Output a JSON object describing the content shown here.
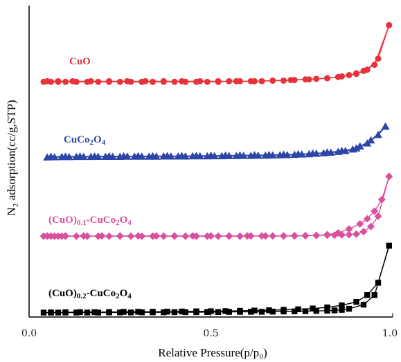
{
  "chart_data": {
    "type": "line",
    "title": "",
    "xlabel": "Relative Pressure(p/p₀)",
    "ylabel": "N₂ adsorption(cc/g,STP)",
    "xlim": [
      0,
      1
    ],
    "x_ticks": [
      "0.0",
      "0.5",
      "1.0"
    ],
    "y_ticks": "none",
    "grid": false,
    "legend": "inline labels",
    "series": [
      {
        "name": "CuO",
        "label_parts": [
          {
            "t": "CuO",
            "sub": false
          }
        ],
        "color": "#e8323a",
        "marker": "circle",
        "adsorption": {
          "x": [
            0.04,
            0.06,
            0.08,
            0.1,
            0.13,
            0.16,
            0.19,
            0.22,
            0.25,
            0.28,
            0.31,
            0.34,
            0.37,
            0.4,
            0.43,
            0.46,
            0.49,
            0.52,
            0.55,
            0.58,
            0.61,
            0.64,
            0.67,
            0.7,
            0.73,
            0.76,
            0.79,
            0.82,
            0.85,
            0.88,
            0.9,
            0.92,
            0.95,
            0.99
          ],
          "y": [
            0.02,
            0.02,
            0.02,
            0.02,
            0.02,
            0.02,
            0.02,
            0.02,
            0.02,
            0.02,
            0.02,
            0.02,
            0.02,
            0.02,
            0.02,
            0.02,
            0.02,
            0.02,
            0.03,
            0.03,
            0.03,
            0.03,
            0.04,
            0.04,
            0.05,
            0.06,
            0.07,
            0.08,
            0.1,
            0.13,
            0.16,
            0.2,
            0.3,
            0.95
          ]
        },
        "desorption": {
          "x": [
            0.99,
            0.96,
            0.93,
            0.9,
            0.86,
            0.82,
            0.77,
            0.72,
            0.67,
            0.62,
            0.57,
            0.52,
            0.47,
            0.42,
            0.37,
            0.32,
            0.27,
            0.22,
            0.17,
            0.12,
            0.08,
            0.05
          ],
          "y": [
            0.95,
            0.4,
            0.22,
            0.15,
            0.11,
            0.08,
            0.06,
            0.05,
            0.04,
            0.03,
            0.03,
            0.03,
            0.03,
            0.03,
            0.03,
            0.03,
            0.03,
            0.03,
            0.03,
            0.03,
            0.03,
            0.03
          ]
        }
      },
      {
        "name": "CuCo2O4",
        "label_parts": [
          {
            "t": "CuCo",
            "sub": false
          },
          {
            "t": "2",
            "sub": true
          },
          {
            "t": "O",
            "sub": false
          },
          {
            "t": "4",
            "sub": true
          }
        ],
        "color": "#2e45a8",
        "marker": "triangle",
        "adsorption": {
          "x": [
            0.05,
            0.07,
            0.09,
            0.11,
            0.13,
            0.15,
            0.17,
            0.19,
            0.21,
            0.23,
            0.25,
            0.27,
            0.29,
            0.31,
            0.33,
            0.35,
            0.37,
            0.39,
            0.41,
            0.43,
            0.45,
            0.47,
            0.49,
            0.51,
            0.53,
            0.55,
            0.57,
            0.59,
            0.61,
            0.63,
            0.65,
            0.67,
            0.69,
            0.71,
            0.73,
            0.75,
            0.77,
            0.79,
            0.81,
            0.83,
            0.85,
            0.87,
            0.89,
            0.91,
            0.94,
            0.98
          ],
          "y": [
            0.03,
            0.04,
            0.05,
            0.05,
            0.06,
            0.06,
            0.06,
            0.07,
            0.07,
            0.07,
            0.07,
            0.08,
            0.08,
            0.08,
            0.08,
            0.08,
            0.09,
            0.09,
            0.09,
            0.09,
            0.1,
            0.1,
            0.1,
            0.11,
            0.11,
            0.12,
            0.12,
            0.13,
            0.13,
            0.14,
            0.15,
            0.16,
            0.17,
            0.18,
            0.2,
            0.22,
            0.24,
            0.27,
            0.3,
            0.34,
            0.39,
            0.45,
            0.55,
            0.75,
            1.15,
            2.05
          ]
        },
        "desorption": {
          "x": [
            0.98,
            0.96,
            0.93,
            0.9,
            0.86,
            0.82,
            0.78,
            0.74,
            0.7,
            0.66,
            0.62,
            0.58,
            0.54,
            0.5,
            0.46,
            0.42,
            0.38,
            0.34,
            0.3,
            0.26,
            0.22,
            0.18,
            0.14,
            0.1,
            0.06
          ],
          "y": [
            2.05,
            1.5,
            0.95,
            0.62,
            0.45,
            0.35,
            0.28,
            0.24,
            0.21,
            0.19,
            0.17,
            0.16,
            0.15,
            0.14,
            0.13,
            0.12,
            0.12,
            0.11,
            0.11,
            0.1,
            0.1,
            0.09,
            0.09,
            0.08,
            0.07
          ]
        }
      },
      {
        "name": "(CuO)0.1-CuCo2O4",
        "label_parts": [
          {
            "t": "(CuO)",
            "sub": false
          },
          {
            "t": "0.1",
            "sub": true
          },
          {
            "t": "-CuCo",
            "sub": false
          },
          {
            "t": "2",
            "sub": true
          },
          {
            "t": "O",
            "sub": false
          },
          {
            "t": "4",
            "sub": true
          }
        ],
        "color": "#d9509e",
        "marker": "diamond",
        "adsorption": {
          "x": [
            0.04,
            0.05,
            0.06,
            0.07,
            0.08,
            0.09,
            0.1,
            0.13,
            0.16,
            0.19,
            0.22,
            0.25,
            0.28,
            0.31,
            0.34,
            0.37,
            0.4,
            0.43,
            0.46,
            0.49,
            0.52,
            0.55,
            0.58,
            0.61,
            0.64,
            0.67,
            0.7,
            0.73,
            0.76,
            0.79,
            0.82,
            0.84,
            0.86,
            0.88,
            0.9,
            0.92,
            0.94,
            0.96,
            0.99
          ],
          "y": [
            0.02,
            0.02,
            0.02,
            0.02,
            0.02,
            0.02,
            0.02,
            0.02,
            0.02,
            0.02,
            0.02,
            0.02,
            0.02,
            0.02,
            0.02,
            0.02,
            0.02,
            0.02,
            0.02,
            0.02,
            0.02,
            0.02,
            0.02,
            0.03,
            0.03,
            0.03,
            0.03,
            0.04,
            0.04,
            0.05,
            0.06,
            0.06,
            0.07,
            0.08,
            0.1,
            0.2,
            0.4,
            0.8,
            2.35
          ]
        },
        "desorption": {
          "x": [
            0.99,
            0.97,
            0.95,
            0.93,
            0.91,
            0.88,
            0.85,
            0.82,
            0.79,
            0.76,
            0.73,
            0.7,
            0.65,
            0.6,
            0.55,
            0.5,
            0.45,
            0.4,
            0.35,
            0.3,
            0.25,
            0.2,
            0.15,
            0.1,
            0.05
          ],
          "y": [
            2.35,
            1.45,
            1.0,
            0.7,
            0.5,
            0.3,
            0.15,
            0.08,
            0.05,
            0.04,
            0.03,
            0.03,
            0.03,
            0.03,
            0.03,
            0.03,
            0.03,
            0.03,
            0.03,
            0.03,
            0.03,
            0.03,
            0.03,
            0.03,
            0.03
          ]
        }
      },
      {
        "name": "(CuO)0.2-CuCo2O4",
        "label_parts": [
          {
            "t": "(CuO)",
            "sub": false
          },
          {
            "t": "0.2",
            "sub": true
          },
          {
            "t": "-CuCo",
            "sub": false
          },
          {
            "t": "2",
            "sub": true
          },
          {
            "t": "O",
            "sub": false
          },
          {
            "t": "4",
            "sub": true
          }
        ],
        "color": "#000000",
        "marker": "square",
        "adsorption": {
          "x": [
            0.04,
            0.06,
            0.08,
            0.1,
            0.13,
            0.16,
            0.19,
            0.22,
            0.25,
            0.28,
            0.31,
            0.34,
            0.37,
            0.4,
            0.43,
            0.46,
            0.49,
            0.52,
            0.55,
            0.58,
            0.61,
            0.64,
            0.67,
            0.7,
            0.73,
            0.76,
            0.79,
            0.82,
            0.84,
            0.86,
            0.88,
            0.92,
            0.95,
            0.99
          ],
          "y": [
            0.02,
            0.02,
            0.02,
            0.02,
            0.02,
            0.02,
            0.02,
            0.03,
            0.03,
            0.03,
            0.04,
            0.04,
            0.04,
            0.05,
            0.05,
            0.05,
            0.06,
            0.06,
            0.07,
            0.07,
            0.08,
            0.08,
            0.09,
            0.1,
            0.11,
            0.12,
            0.14,
            0.16,
            0.18,
            0.22,
            0.3,
            0.6,
            1.3,
            4.9
          ]
        },
        "desorption": {
          "x": [
            0.99,
            0.96,
            0.93,
            0.9,
            0.86,
            0.82,
            0.78,
            0.74,
            0.7,
            0.66,
            0.62,
            0.58,
            0.54,
            0.5,
            0.46,
            0.42,
            0.38,
            0.34,
            0.3,
            0.26,
            0.22,
            0.18,
            0.14,
            0.1,
            0.06
          ],
          "y": [
            4.9,
            2.2,
            1.3,
            0.8,
            0.55,
            0.4,
            0.32,
            0.26,
            0.22,
            0.19,
            0.17,
            0.15,
            0.13,
            0.12,
            0.11,
            0.1,
            0.09,
            0.08,
            0.08,
            0.07,
            0.06,
            0.05,
            0.05,
            0.04,
            0.03
          ]
        }
      }
    ]
  }
}
